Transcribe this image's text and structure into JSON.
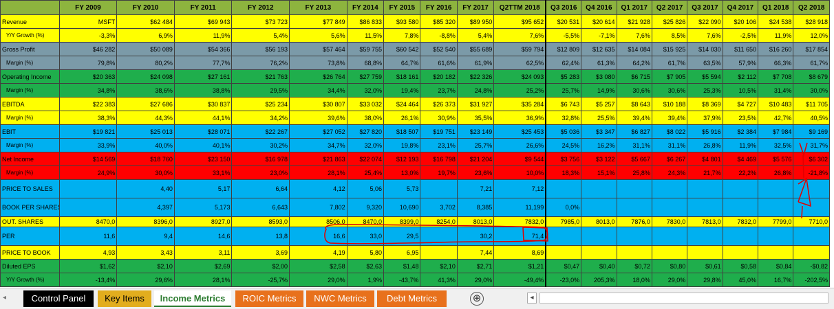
{
  "header": {
    "cols": [
      "",
      "FY 2009",
      "FY 2010",
      "FY 2011",
      "FY 2012",
      "FY 2013",
      "FY 2014",
      "FY 2015",
      "FY 2016",
      "FY 2017",
      "Q2TTM 2018",
      "Q3 2016",
      "Q4 2016",
      "Q1 2017",
      "Q2 2017",
      "Q3 2017",
      "Q4 2017",
      "Q1 2018",
      "Q2 2018"
    ]
  },
  "rows": [
    {
      "label": "Revenue",
      "sub": false,
      "color": "y",
      "height": "",
      "cells": [
        "MSFT",
        "$62 484",
        "$69 943",
        "$73 723",
        "$77 849",
        "$86 833",
        "$93 580",
        "$85 320",
        "$89 950",
        "$95 652",
        "$20 531",
        "$20 614",
        "$21 928",
        "$25 826",
        "$22 090",
        "$20 106",
        "$24 538",
        "$28 918"
      ]
    },
    {
      "label": "Y/Y Growth (%)",
      "sub": true,
      "color": "y",
      "height": "",
      "cells": [
        "-3,3%",
        "6,9%",
        "11,9%",
        "5,4%",
        "5,6%",
        "11,5%",
        "7,8%",
        "-8,8%",
        "5,4%",
        "7,6%",
        "-5,5%",
        "-7,1%",
        "7,6%",
        "8,5%",
        "7,6%",
        "-2,5%",
        "11,9%",
        "12,0%"
      ]
    },
    {
      "label": "Gross Profit",
      "sub": false,
      "color": "g",
      "height": "",
      "cells": [
        "$46 282",
        "$50 089",
        "$54 366",
        "$56 193",
        "$57 464",
        "$59 755",
        "$60 542",
        "$52 540",
        "$55 689",
        "$59 794",
        "$12 809",
        "$12 635",
        "$14 084",
        "$15 925",
        "$14 030",
        "$11 650",
        "$16 260",
        "$17 854"
      ]
    },
    {
      "label": "Margin (%)",
      "sub": true,
      "color": "g",
      "height": "",
      "cells": [
        "79,8%",
        "80,2%",
        "77,7%",
        "76,2%",
        "73,8%",
        "68,8%",
        "64,7%",
        "61,6%",
        "61,9%",
        "62,5%",
        "62,4%",
        "61,3%",
        "64,2%",
        "61,7%",
        "63,5%",
        "57,9%",
        "66,3%",
        "61,7%"
      ]
    },
    {
      "label": "Operating Income",
      "sub": false,
      "color": "gr",
      "height": "",
      "cells": [
        "$20 363",
        "$24 098",
        "$27 161",
        "$21 763",
        "$26 764",
        "$27 759",
        "$18 161",
        "$20 182",
        "$22 326",
        "$24 093",
        "$5 283",
        "$3 080",
        "$6 715",
        "$7 905",
        "$5 594",
        "$2 112",
        "$7 708",
        "$8 679"
      ]
    },
    {
      "label": "Margin (%)",
      "sub": true,
      "color": "gr",
      "height": "",
      "cells": [
        "34,8%",
        "38,6%",
        "38,8%",
        "29,5%",
        "34,4%",
        "32,0%",
        "19,4%",
        "23,7%",
        "24,8%",
        "25,2%",
        "25,7%",
        "14,9%",
        "30,6%",
        "30,6%",
        "25,3%",
        "10,5%",
        "31,4%",
        "30,0%"
      ]
    },
    {
      "label": "EBITDA",
      "sub": false,
      "color": "y",
      "height": "",
      "cells": [
        "$22 383",
        "$27 686",
        "$30 837",
        "$25 234",
        "$30 807",
        "$33 032",
        "$24 464",
        "$26 373",
        "$31 927",
        "$35 284",
        "$6 743",
        "$5 257",
        "$8 643",
        "$10 188",
        "$8 369",
        "$4 727",
        "$10 483",
        "$11 705"
      ]
    },
    {
      "label": "Margin (%)",
      "sub": true,
      "color": "y",
      "height": "",
      "cells": [
        "38,3%",
        "44,3%",
        "44,1%",
        "34,2%",
        "39,6%",
        "38,0%",
        "26,1%",
        "30,9%",
        "35,5%",
        "36,9%",
        "32,8%",
        "25,5%",
        "39,4%",
        "39,4%",
        "37,9%",
        "23,5%",
        "42,7%",
        "40,5%"
      ]
    },
    {
      "label": "EBIT",
      "sub": false,
      "color": "b",
      "height": "",
      "cells": [
        "$19 821",
        "$25 013",
        "$28 071",
        "$22 267",
        "$27 052",
        "$27 820",
        "$18 507",
        "$19 751",
        "$23 149",
        "$25 453",
        "$5 036",
        "$3 347",
        "$6 827",
        "$8 022",
        "$5 916",
        "$2 384",
        "$7 984",
        "$9 169"
      ]
    },
    {
      "label": "Margin (%)",
      "sub": true,
      "color": "b",
      "height": "",
      "cells": [
        "33,9%",
        "40,0%",
        "40,1%",
        "30,2%",
        "34,7%",
        "32,0%",
        "19,8%",
        "23,1%",
        "25,7%",
        "26,6%",
        "24,5%",
        "16,2%",
        "31,1%",
        "31,1%",
        "26,8%",
        "11,9%",
        "32,5%",
        "31,7%"
      ]
    },
    {
      "label": "Net Income",
      "sub": false,
      "color": "r",
      "height": "",
      "cells": [
        "$14 569",
        "$18 760",
        "$23 150",
        "$16 978",
        "$21 863",
        "$22 074",
        "$12 193",
        "$16 798",
        "$21 204",
        "$9 544",
        "$3 756",
        "$3 122",
        "$5 667",
        "$6 267",
        "$4 801",
        "$4 469",
        "$5 576",
        "$6 302"
      ]
    },
    {
      "label": "Margin (%)",
      "sub": true,
      "color": "r",
      "height": "",
      "cells": [
        "24,9%",
        "30,0%",
        "33,1%",
        "23,0%",
        "28,1%",
        "25,4%",
        "13,0%",
        "19,7%",
        "23,6%",
        "10,0%",
        "18,3%",
        "15,1%",
        "25,8%",
        "24,3%",
        "21,7%",
        "22,2%",
        "26,8%",
        "-21,8%"
      ]
    },
    {
      "label": "PRICE TO SALES",
      "sub": false,
      "color": "b",
      "height": "tall",
      "cells": [
        "",
        "4,40",
        "5,17",
        "6,64",
        "4,12",
        "5,06",
        "5,73",
        "",
        "7,21",
        "7,12",
        "",
        "",
        "",
        "",
        "",
        "",
        "",
        ""
      ]
    },
    {
      "label": "BOOK PER SHARES",
      "sub": false,
      "color": "b",
      "height": "tall",
      "cells": [
        "",
        "4,397",
        "5,173",
        "6,643",
        "7,802",
        "9,320",
        "10,690",
        "3,702",
        "8,385",
        "11,199",
        "0,0%",
        "",
        "",
        "",
        "",
        "",
        "",
        ""
      ]
    },
    {
      "label": "OUT. SHARES",
      "sub": false,
      "color": "y",
      "height": "thin",
      "cells": [
        "8470,0",
        "8396,0",
        "8927,0",
        "8593,0",
        "8506,0",
        "8470,0",
        "8399,0",
        "8254,0",
        "8013,0",
        "7832,0",
        "7985,0",
        "8013,0",
        "7876,0",
        "7830,0",
        "7813,0",
        "7832,0",
        "7799,0",
        "7710,0"
      ]
    },
    {
      "label": "PER",
      "sub": false,
      "color": "b",
      "height": "tall",
      "cells": [
        "11,6",
        "9,4",
        "14,6",
        "13,8",
        "16,6",
        "33,0",
        "29,5",
        "",
        "30,2",
        "71,4",
        "",
        "",
        "",
        "",
        "",
        "",
        "",
        ""
      ]
    },
    {
      "label": "PRICE TO BOOK",
      "sub": false,
      "color": "y",
      "height": "",
      "cells": [
        "4,93",
        "3,43",
        "3,11",
        "3,69",
        "4,19",
        "5,80",
        "6,95",
        "",
        "7,44",
        "8,69",
        "",
        "",
        "",
        "",
        "",
        "",
        "",
        ""
      ]
    },
    {
      "label": "Diluted EPS",
      "sub": false,
      "color": "gr",
      "height": "",
      "cells": [
        "$1,62",
        "$2,10",
        "$2,69",
        "$2,00",
        "$2,58",
        "$2,63",
        "$1,48",
        "$2,10",
        "$2,71",
        "$1,21",
        "$0,47",
        "$0,40",
        "$0,72",
        "$0,80",
        "$0,61",
        "$0,58",
        "$0,84",
        "-$0,82"
      ]
    },
    {
      "label": "Y/Y Growth (%)",
      "sub": true,
      "color": "gr",
      "height": "",
      "cells": [
        "-13,4%",
        "29,6%",
        "28,1%",
        "-25,7%",
        "29,0%",
        "1,9%",
        "-43,7%",
        "41,3%",
        "29,0%",
        "-49,4%",
        "-23,0%",
        "205,3%",
        "18,0%",
        "29,0%",
        "29,8%",
        "45,0%",
        "16,7%",
        "-202,5%"
      ]
    }
  ],
  "tabs": [
    {
      "label": "Control Panel",
      "bg": "#000000",
      "fg": "#ffffff"
    },
    {
      "label": "Key Items",
      "bg": "#e2ad1e",
      "fg": "#000000"
    },
    {
      "label": "Income Metrics",
      "bg": "#ffffff",
      "fg": "#2e7d32"
    },
    {
      "label": "ROIC Metrics",
      "bg": "#e8711c",
      "fg": "#ffffff"
    },
    {
      "label": "NWC Metrics",
      "bg": "#e8711c",
      "fg": "#ffffff"
    },
    {
      "label": "Debt Metrics",
      "bg": "#e8711c",
      "fg": "#ffffff"
    }
  ],
  "add_sheet": "⊕",
  "scroll_left": "◂",
  "annotation_color": "#e00000"
}
